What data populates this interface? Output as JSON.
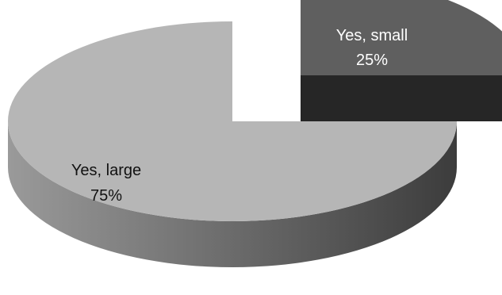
{
  "chart_data": {
    "type": "pie",
    "categories": [
      "Yes, small",
      "Yes, large"
    ],
    "values": [
      25,
      75
    ],
    "unit": "%",
    "data_labels": [
      {
        "name": "Yes, small",
        "value": "25%"
      },
      {
        "name": "Yes, large",
        "value": "75%"
      }
    ],
    "legend": "none",
    "three_d": true,
    "exploded_slice": "Yes, small",
    "colors": {
      "Yes, small": {
        "top": "#5f5f5f",
        "side": "#262626"
      },
      "Yes, large": {
        "top": "#b6b6b6",
        "side_light": "#9a9a9a",
        "side_dark": "#3c3c3c"
      }
    }
  }
}
